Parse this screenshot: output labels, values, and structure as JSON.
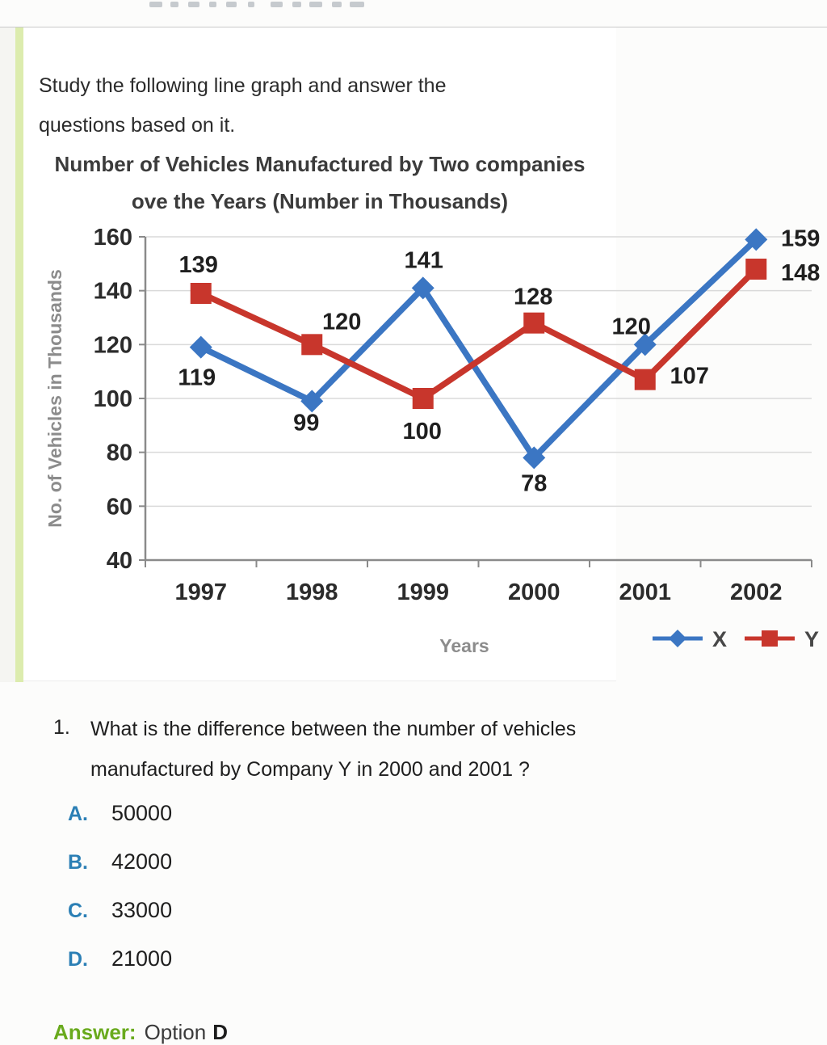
{
  "intro": {
    "line1": "Study the following line graph and answer the",
    "line2": "questions based on it."
  },
  "chart_data": {
    "type": "line",
    "title_line1": "Number of Vehicles Manufactured by Two companies",
    "title_line2": "ove the Years (Number in Thousands)",
    "categories": [
      "1997",
      "1998",
      "1999",
      "2000",
      "2001",
      "2002"
    ],
    "series": [
      {
        "name": "X",
        "color": "#3B76C3",
        "marker": "diamond",
        "values": [
          119,
          99,
          141,
          78,
          120,
          159
        ]
      },
      {
        "name": "Y",
        "color": "#C8362C",
        "marker": "square",
        "values": [
          139,
          120,
          100,
          128,
          107,
          148
        ]
      }
    ],
    "xlabel": "Years",
    "ylabel": "No. of Vehicles in Thousands",
    "ylim": [
      40,
      160
    ],
    "yticks": [
      160,
      140,
      120,
      100,
      80,
      60,
      40
    ],
    "grid": true,
    "legend_position": "bottom-right",
    "layout": {
      "label_offsets": {
        "X": [
          [
            -5,
            47
          ],
          [
            -7,
            36
          ],
          [
            1,
            -25
          ],
          [
            0,
            41
          ],
          [
            -17,
            -13
          ],
          [
            55,
            8
          ]
        ],
        "Y": [
          [
            -3,
            -26
          ],
          [
            37,
            -19
          ],
          [
            -1,
            50
          ],
          [
            -1,
            -23
          ],
          [
            55,
            5
          ],
          [
            55,
            14
          ]
        ]
      }
    }
  },
  "question": {
    "number": "1.",
    "line1": "What is the difference between the number of vehicles",
    "line2": "manufactured by Company Y in 2000 and 2001 ?",
    "options": [
      {
        "letter": "A.",
        "value": "50000"
      },
      {
        "letter": "B.",
        "value": "42000"
      },
      {
        "letter": "C.",
        "value": "33000"
      },
      {
        "letter": "D.",
        "value": "21000"
      }
    ],
    "answer": {
      "label": "Answer:",
      "text": "Option",
      "letter": "D"
    }
  }
}
